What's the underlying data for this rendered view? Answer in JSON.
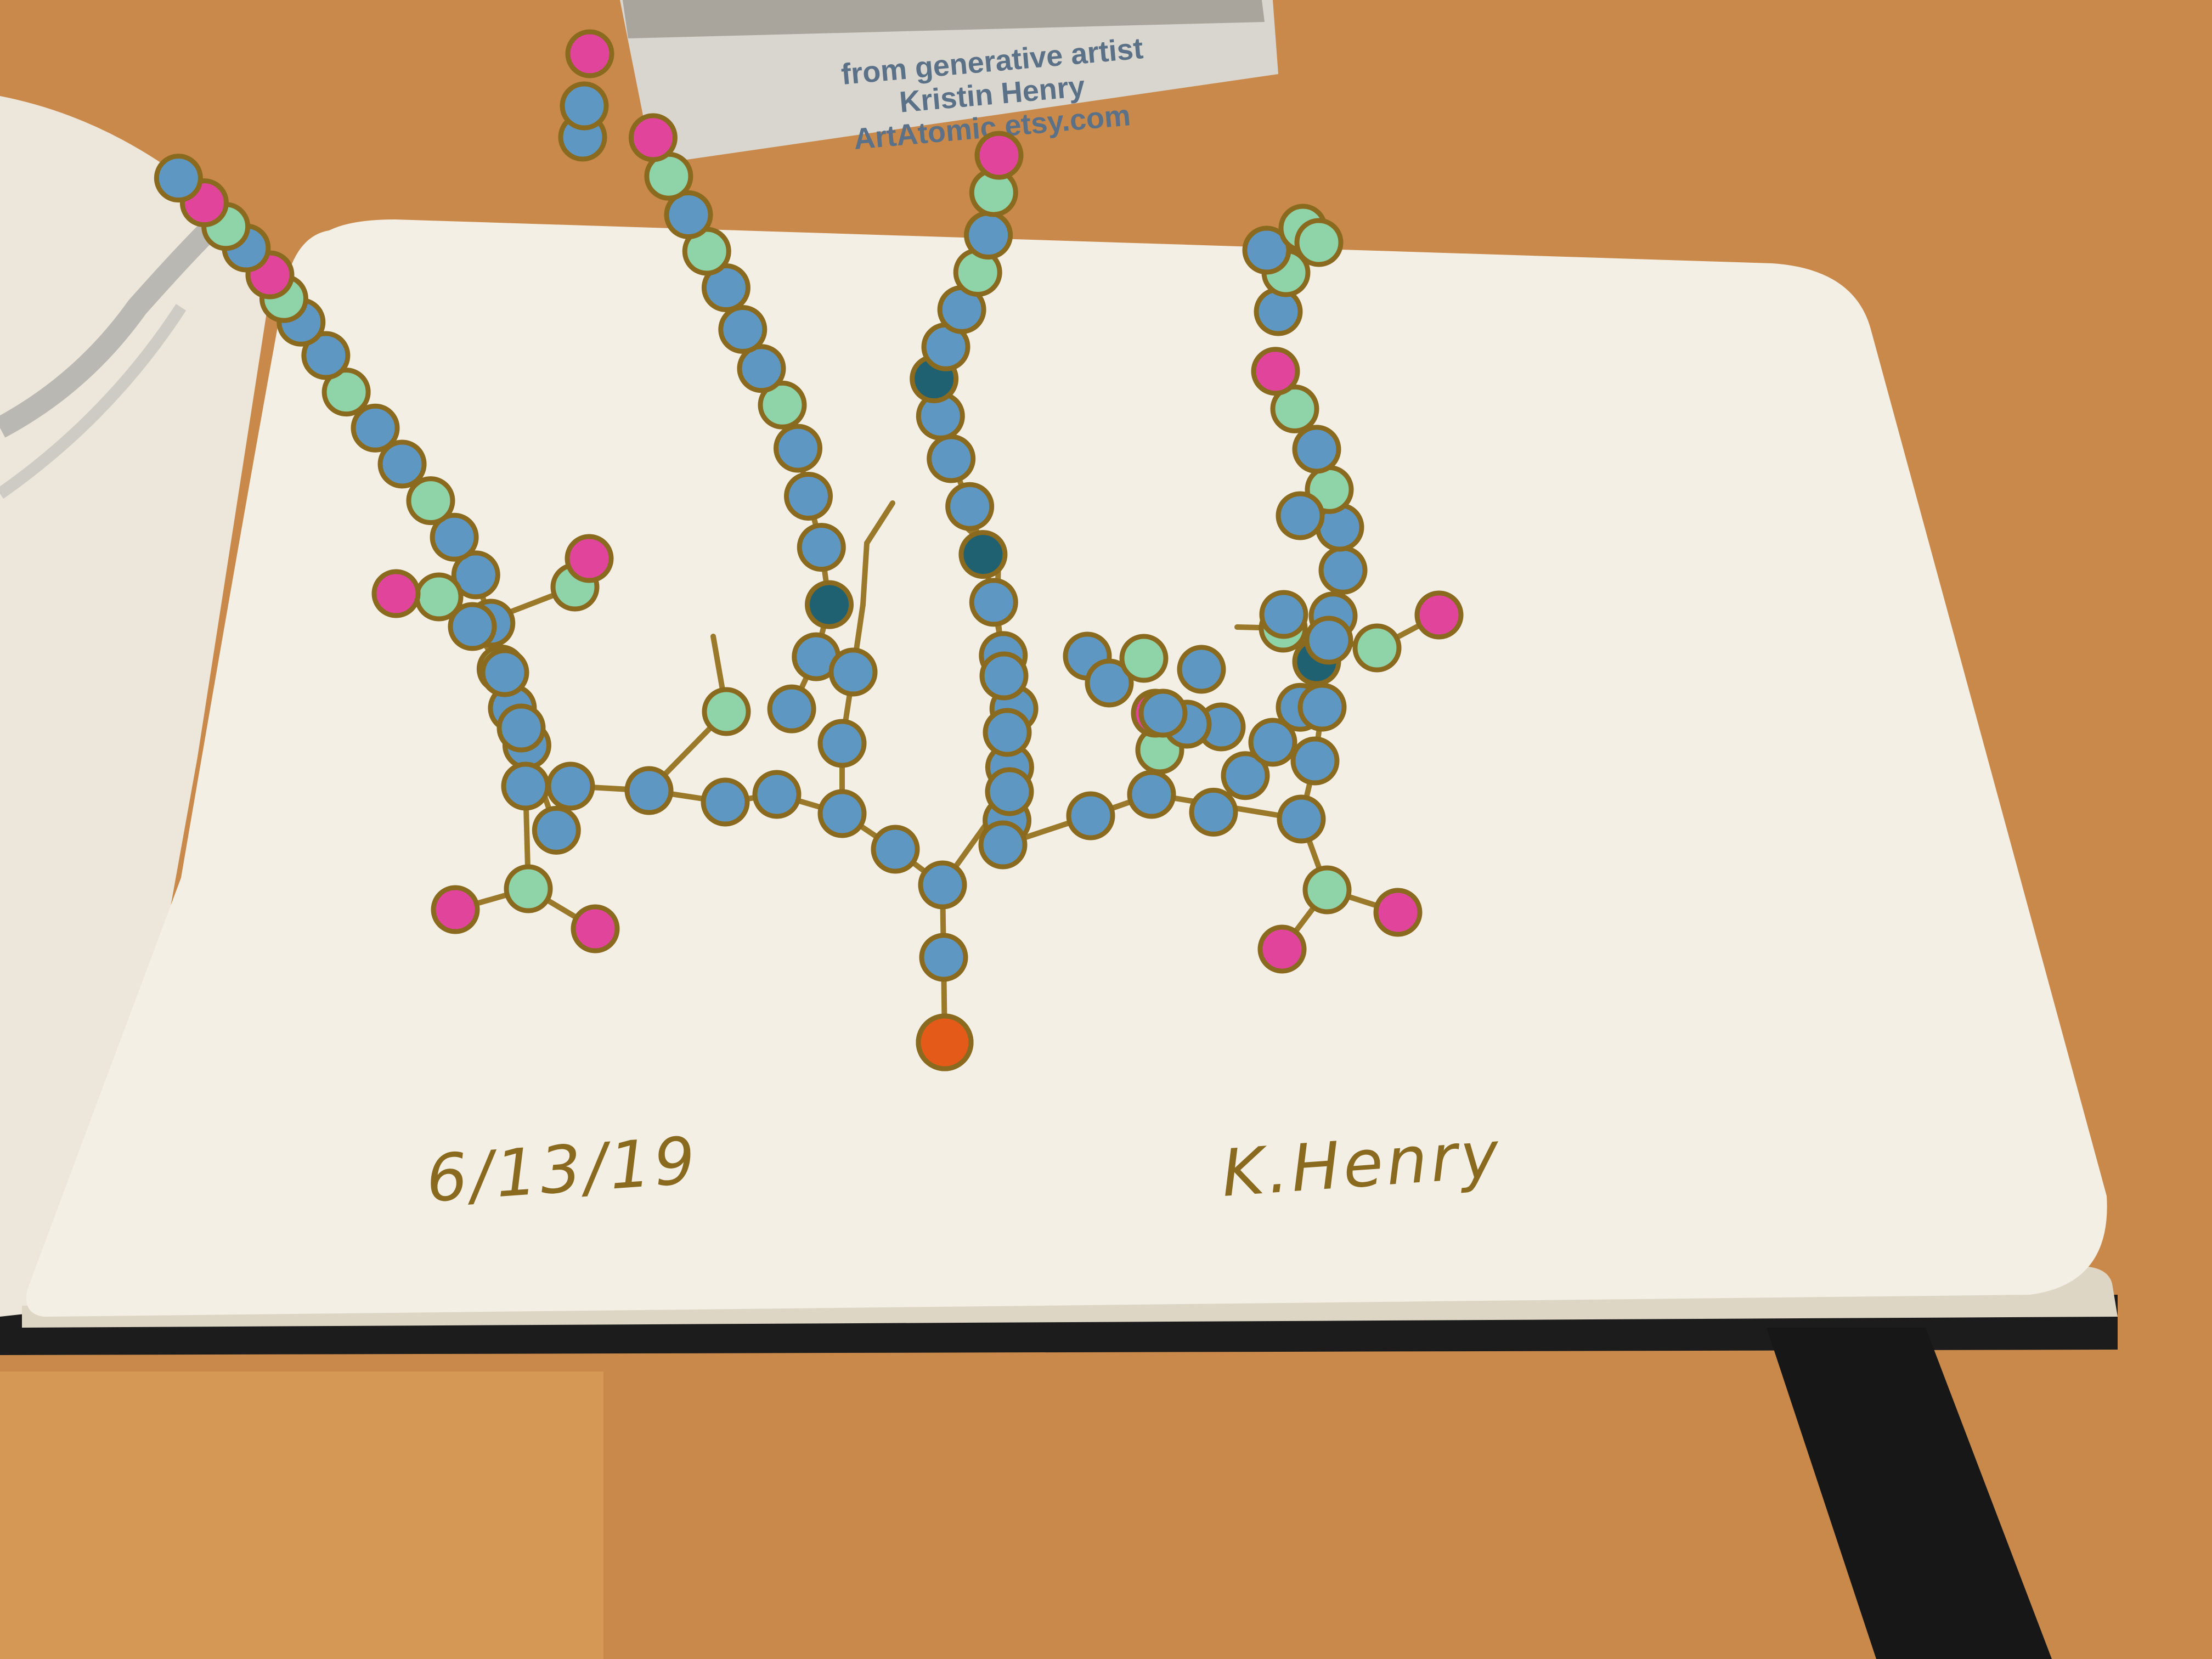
{
  "card": {
    "line1": "from generative artist",
    "line2": "Kristin Henry",
    "line3": "ArtAtomic.etsy.com"
  },
  "drawing": {
    "date": "6/13/19",
    "signature": "K.Henry"
  },
  "colors": {
    "table": "#c9894a",
    "paper": "#f3efe4",
    "bond": "#9a7a2a",
    "blue_atom": "#5d97c2",
    "mint_atom": "#8fd3a8",
    "pink_atom": "#e0449b",
    "dark_teal_atom": "#1f6170",
    "orange_atom": "#e45a18",
    "notebook_cover": "#1a1a1a"
  }
}
